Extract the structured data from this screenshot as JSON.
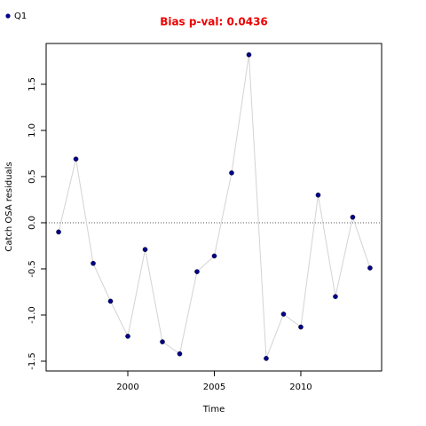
{
  "chart_data": {
    "type": "line",
    "title": "Bias p-val: 0.0436",
    "title_color": "#ee0000",
    "x_label": "Time",
    "y_label": "Catch OSA residuals",
    "x": [
      1996,
      1997,
      1998,
      1999,
      2000,
      2001,
      2002,
      2003,
      2004,
      2005,
      2006,
      2007,
      2008,
      2009,
      2010,
      2011,
      2012,
      2013,
      2014
    ],
    "series": [
      {
        "name": "Q1",
        "color": "#00008b",
        "line_color": "#d3d3d3",
        "values": [
          -0.1,
          0.69,
          -0.44,
          -0.85,
          -1.23,
          -0.29,
          -1.29,
          -1.42,
          -0.53,
          -0.36,
          0.54,
          1.82,
          -1.47,
          -0.99,
          -1.13,
          0.3,
          -0.8,
          0.06,
          -0.49
        ]
      }
    ],
    "xlim": [
      1995.28,
      2014.67
    ],
    "ylim": [
      -1.606,
      1.942
    ],
    "xticks": [
      2000,
      2005,
      2010
    ],
    "yticks": [
      {
        "value": -1.5,
        "label": "-1.5"
      },
      {
        "value": -1,
        "label": "-1.0"
      },
      -0.5,
      {
        "value": 0,
        "label": "0.0"
      },
      0.5,
      {
        "value": 1,
        "label": "1.0"
      },
      1.5
    ],
    "reference_line": 0,
    "legend": "top-left"
  }
}
